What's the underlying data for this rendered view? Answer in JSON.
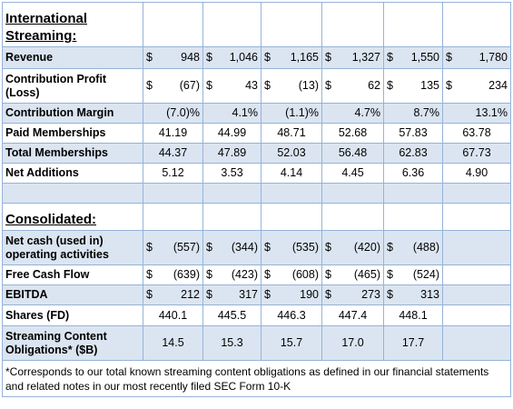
{
  "section1_title": "International Streaming:",
  "section2_title": "Consolidated:",
  "rows": {
    "revenue": {
      "label": "Revenue",
      "cells": [
        [
          "$",
          "948"
        ],
        [
          "$",
          "1,046"
        ],
        [
          "$",
          "1,165"
        ],
        [
          "$",
          "1,327"
        ],
        [
          "$",
          "1,550"
        ],
        [
          "$",
          "1,780"
        ]
      ]
    },
    "contribution_profit": {
      "label": "Contribution Profit (Loss)",
      "cells": [
        [
          "$",
          "(67)"
        ],
        [
          "$",
          "43"
        ],
        [
          "$",
          "(13)"
        ],
        [
          "$",
          "62"
        ],
        [
          "$",
          "135"
        ],
        [
          "$",
          "234"
        ]
      ]
    },
    "contribution_margin": {
      "label": "Contribution Margin",
      "cells": [
        "(7.0)%",
        "4.1%",
        "(1.1)%",
        "4.7%",
        "8.7%",
        "13.1%"
      ]
    },
    "paid_memberships": {
      "label": "Paid Memberships",
      "cells": [
        "41.19",
        "44.99",
        "48.71",
        "52.68",
        "57.83",
        "63.78"
      ]
    },
    "total_memberships": {
      "label": "Total Memberships",
      "cells": [
        "44.37",
        "47.89",
        "52.03",
        "56.48",
        "62.83",
        "67.73"
      ]
    },
    "net_additions": {
      "label": "Net Additions",
      "cells": [
        "5.12",
        "3.53",
        "4.14",
        "4.45",
        "6.36",
        "4.90"
      ]
    },
    "net_cash": {
      "label": "Net cash (used in) operating activities",
      "cells": [
        [
          "$",
          "(557)"
        ],
        [
          "$",
          "(344)"
        ],
        [
          "$",
          "(535)"
        ],
        [
          "$",
          "(420)"
        ],
        [
          "$",
          "(488)"
        ],
        [
          "",
          ""
        ]
      ]
    },
    "free_cash_flow": {
      "label": "Free Cash Flow",
      "cells": [
        [
          "$",
          "(639)"
        ],
        [
          "$",
          "(423)"
        ],
        [
          "$",
          "(608)"
        ],
        [
          "$",
          "(465)"
        ],
        [
          "$",
          "(524)"
        ],
        [
          "",
          ""
        ]
      ]
    },
    "ebitda": {
      "label": "EBITDA",
      "cells": [
        [
          "$",
          "212"
        ],
        [
          "$",
          "317"
        ],
        [
          "$",
          "190"
        ],
        [
          "$",
          "273"
        ],
        [
          "$",
          "313"
        ],
        [
          "",
          ""
        ]
      ]
    },
    "shares": {
      "label": "Shares (FD)",
      "cells": [
        "440.1",
        "445.5",
        "446.3",
        "447.4",
        "448.1",
        ""
      ]
    },
    "streaming_obligations": {
      "label": "Streaming Content Obligations* ($B)",
      "cells": [
        "14.5",
        "15.3",
        "15.7",
        "17.0",
        "17.7",
        ""
      ]
    }
  },
  "footnote": "*Corresponds to our total known streaming content obligations as defined in our financial statements and related notes in our most recently filed SEC Form 10-K"
}
